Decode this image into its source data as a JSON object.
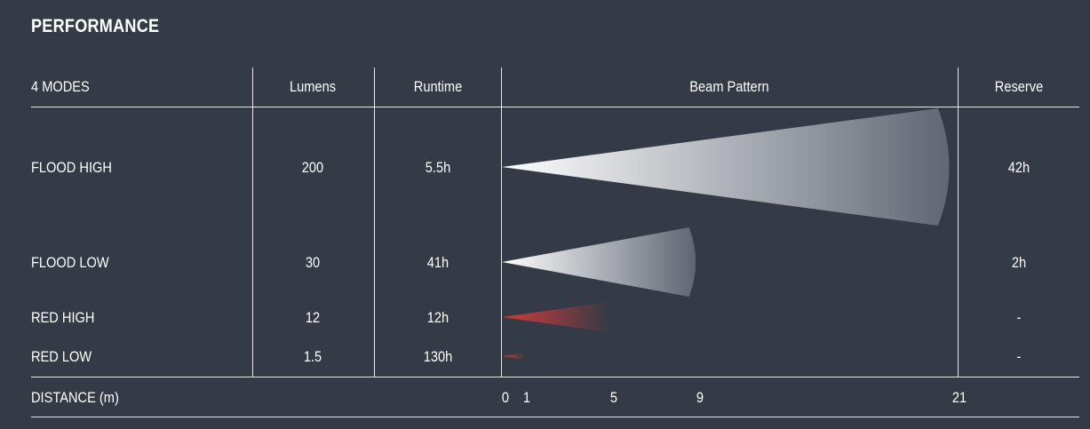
{
  "section_title": "PERFORMANCE",
  "colors": {
    "background": "#343b46",
    "line": "#e6e8eb",
    "white_beam_start": "#ffffff",
    "white_beam_end": "#5d6470",
    "red_beam_start": "#d43a3a",
    "red_beam_end": "#343b46"
  },
  "chart_data": {
    "type": "table",
    "columns": [
      "4 MODES",
      "Lumens",
      "Runtime",
      "Beam Pattern",
      "Reserve"
    ],
    "rows": [
      {
        "mode": "FLOOD HIGH",
        "lumens": "200",
        "runtime": "5.5h",
        "reserve": "42h",
        "beam_distance_m": 21,
        "beam_color": "white"
      },
      {
        "mode": "FLOOD LOW",
        "lumens": "30",
        "runtime": "41h",
        "reserve": "2h",
        "beam_distance_m": 9,
        "beam_color": "white"
      },
      {
        "mode": "RED HIGH",
        "lumens": "12",
        "runtime": "12h",
        "reserve": "-",
        "beam_distance_m": 5,
        "beam_color": "red"
      },
      {
        "mode": "RED LOW",
        "lumens": "1.5",
        "runtime": "130h",
        "reserve": "-",
        "beam_distance_m": 1,
        "beam_color": "red"
      }
    ],
    "distance_axis": {
      "label": "DISTANCE (m)",
      "ticks": [
        0,
        1,
        5,
        9,
        21
      ],
      "range": [
        0,
        21
      ]
    }
  }
}
